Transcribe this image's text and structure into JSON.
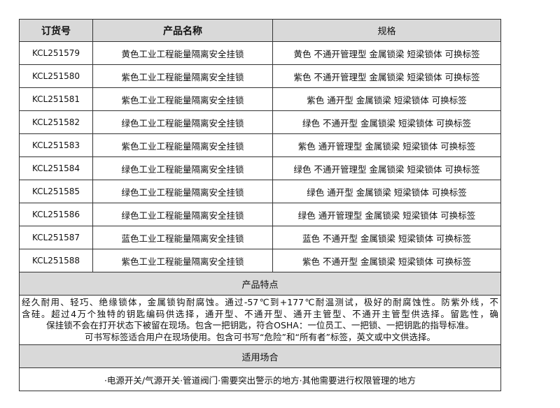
{
  "headers": {
    "code": "订货号",
    "name": "产品名称",
    "spec": "规格"
  },
  "rows": [
    {
      "code": "KCL251579",
      "name": "黄色工业工程能量隔离安全挂锁",
      "spec": "黄色 不通开管理型 金属锁梁 短梁锁体 可换标签"
    },
    {
      "code": "KCL251580",
      "name": "紫色工业工程能量隔离安全挂锁",
      "spec": "紫色 不通开管理型 金属锁梁 短梁锁体 可换标签"
    },
    {
      "code": "KCL251581",
      "name": "紫色工业工程能量隔离安全挂锁",
      "spec": "紫色 通开型 金属锁梁 短梁锁体 可换标签"
    },
    {
      "code": "KCL251582",
      "name": "绿色工业工程能量隔离安全挂锁",
      "spec": "绿色 不通开型 金属锁梁 短梁锁体 可换标签"
    },
    {
      "code": "KCL251583",
      "name": "紫色工业工程能量隔离安全挂锁",
      "spec": "紫色 通开管理型 金属锁梁 短梁锁体 可换标签"
    },
    {
      "code": "KCL251584",
      "name": "绿色工业工程能量隔离安全挂锁",
      "spec": "绿色 不通开管理型 金属锁梁 短梁锁体 可换标签"
    },
    {
      "code": "KCL251585",
      "name": "绿色工业工程能量隔离安全挂锁",
      "spec": "绿色 通开型 金属锁梁 短梁锁体 可换标签"
    },
    {
      "code": "KCL251586",
      "name": "绿色工业工程能量隔离安全挂锁",
      "spec": "绿色 通开管理型 金属锁梁 短梁锁体 可换标签"
    },
    {
      "code": "KCL251587",
      "name": "蓝色工业工程能量隔离安全挂锁",
      "spec": "蓝色 不通开型 金属锁梁 短梁锁体 可换标签"
    },
    {
      "code": "KCL251588",
      "name": "紫色工业工程能量隔离安全挂锁",
      "spec": "紫色 不通开型 金属锁梁 短梁锁体 可换标签"
    }
  ],
  "features": {
    "title": "产品特点",
    "lines": [
      "经久耐用、轻巧、绝缘锁体，金属锁钩耐腐蚀。通过-57℃到+177℃耐温测试，极好的耐腐蚀性。防紫外线，不",
      "含硅。超过4万个独特的钥匙编码供选择，通开型、不通开型、通开主管型、不通开主管型供选择。留匙性，确",
      "保挂锁不会在打开状态下被留在现场。包含一把钥匙，符合OSHA：一位员工、一把锁、一把钥匙的指导标准。",
      "可书写标签适合用户在现场使用。包含可书写“危险”和“所有者”标签，英文或中文供选择。"
    ]
  },
  "usage": {
    "title": "适用场合",
    "text": "·电源开关/气源开关·管道阀门·需要突出警示的地方·其他需要进行权限管理的地方"
  }
}
